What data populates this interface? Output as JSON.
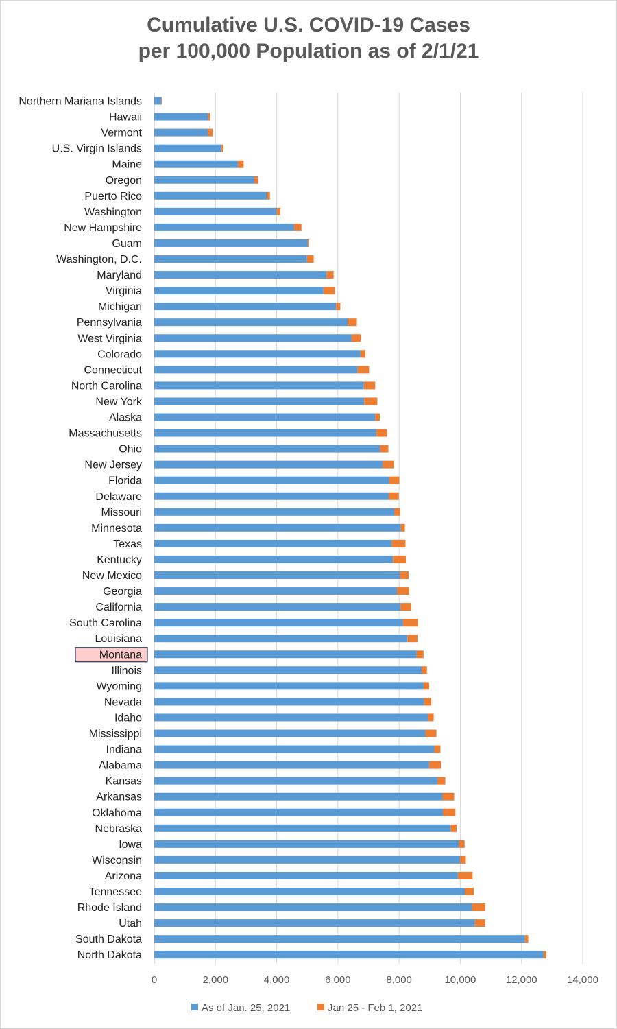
{
  "chart_data": {
    "type": "bar",
    "orientation": "horizontal",
    "stacked": true,
    "title_line1": "Cumulative U.S. COVID-19 Cases",
    "title_line2": "per 100,000 Population as of 2/1/21",
    "highlighted_category": "Montana",
    "xlim": [
      0,
      14000
    ],
    "x_ticks": [
      "0",
      "2,000",
      "4,000",
      "6,000",
      "8,000",
      "10,000",
      "12,000",
      "14,000"
    ],
    "grid": true,
    "legend_position": "bottom",
    "colors": {
      "base": "#5b9bd5",
      "increment": "#ed7d31"
    },
    "categories": [
      "Northern Mariana Islands",
      "Hawaii",
      "Vermont",
      "U.S. Virgin Islands",
      "Maine",
      "Oregon",
      "Puerto Rico",
      "Washington",
      "New Hampshire",
      "Guam",
      "Washington, D.C.",
      "Maryland",
      "Virginia",
      "Michigan",
      "Pennsylvania",
      "West Virginia",
      "Colorado",
      "Connecticut",
      "North Carolina",
      "New York",
      "Alaska",
      "Massachusetts",
      "Ohio",
      "New Jersey",
      "Florida",
      "Delaware",
      "Missouri",
      "Minnesota",
      "Texas",
      "Kentucky",
      "New Mexico",
      "Georgia",
      "California",
      "South Carolina",
      "Louisiana",
      "Montana",
      "Illinois",
      "Wyoming",
      "Nevada",
      "Idaho",
      "Mississippi",
      "Indiana",
      "Alabama",
      "Kansas",
      "Arkansas",
      "Oklahoma",
      "Nebraska",
      "Iowa",
      "Wisconsin",
      "Arizona",
      "Tennessee",
      "Rhode Island",
      "Utah",
      "South Dakota",
      "North Dakota"
    ],
    "series": [
      {
        "name": "As of Jan. 25, 2021",
        "values": [
          230,
          1760,
          1760,
          2200,
          2730,
          3270,
          3680,
          4000,
          4570,
          5020,
          4990,
          5630,
          5530,
          5940,
          6320,
          6450,
          6740,
          6640,
          6850,
          6860,
          7220,
          7260,
          7380,
          7460,
          7680,
          7660,
          7840,
          8060,
          7760,
          7800,
          8030,
          7930,
          8050,
          8130,
          8270,
          8570,
          8740,
          8800,
          8820,
          8940,
          8860,
          9150,
          8980,
          9250,
          9420,
          9440,
          9680,
          9950,
          9990,
          9920,
          10150,
          10380,
          10480,
          12110,
          12720
        ]
      },
      {
        "name": "Jan 25 - Feb 1, 2021",
        "values": [
          20,
          60,
          150,
          60,
          190,
          120,
          100,
          120,
          240,
          40,
          220,
          230,
          370,
          140,
          300,
          300,
          160,
          380,
          370,
          430,
          150,
          350,
          270,
          370,
          330,
          330,
          200,
          130,
          450,
          420,
          280,
          400,
          350,
          480,
          330,
          230,
          170,
          180,
          230,
          190,
          360,
          200,
          390,
          260,
          380,
          400,
          200,
          190,
          190,
          480,
          290,
          430,
          330,
          110,
          90
        ]
      }
    ]
  }
}
